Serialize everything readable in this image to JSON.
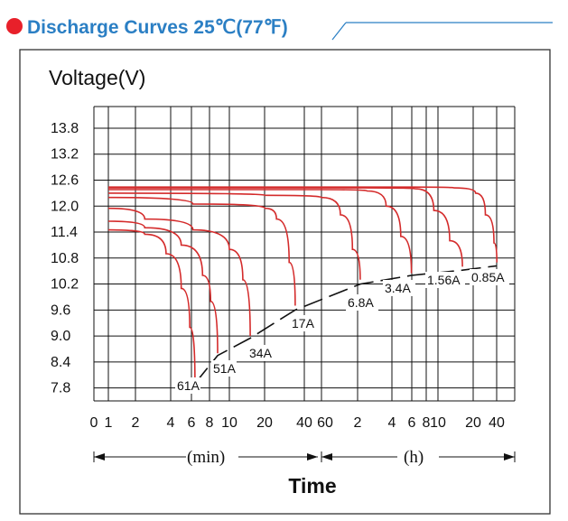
{
  "header": {
    "title": "Discharge Curves 25℃(77℉)",
    "accent_color": "#2b7fc4",
    "dot_color": "#e8202a"
  },
  "chart_data": {
    "type": "line",
    "ylabel": "Voltage(V)",
    "xlabel": "Time",
    "x_scale": "log",
    "ylim": [
      7.5,
      14.3
    ],
    "y_ticks": [
      13.8,
      13.2,
      12.6,
      12.0,
      11.4,
      10.8,
      10.2,
      9.6,
      9.0,
      8.4,
      7.8
    ],
    "x_ticks_min": [
      "0",
      "1",
      "2",
      "4",
      "6",
      "8",
      "10",
      "20",
      "40"
    ],
    "x_ticks_h": [
      "60",
      "2",
      "4",
      "6",
      "8",
      "10",
      "20",
      "40"
    ],
    "x_unit_min": "(min)",
    "x_unit_h": "(h)",
    "grid": true,
    "curve_color": "#d42b2b",
    "series": [
      {
        "name": "61A",
        "points": [
          [
            1,
            11.45
          ],
          [
            2,
            11.35
          ],
          [
            3,
            10.9
          ],
          [
            4,
            10.1
          ],
          [
            4.7,
            9.2
          ],
          [
            5.2,
            7.9
          ]
        ]
      },
      {
        "name": "51A",
        "points": [
          [
            1,
            11.65
          ],
          [
            2,
            11.5
          ],
          [
            4,
            11.1
          ],
          [
            6,
            10.4
          ],
          [
            7,
            9.8
          ],
          [
            8,
            8.6
          ]
        ]
      },
      {
        "name": "34A",
        "points": [
          [
            1,
            11.95
          ],
          [
            2,
            11.7
          ],
          [
            5,
            11.45
          ],
          [
            10,
            11.0
          ],
          [
            13,
            10.3
          ],
          [
            15,
            9.0
          ]
        ]
      },
      {
        "name": "17A",
        "points": [
          [
            1,
            12.2
          ],
          [
            5,
            12.05
          ],
          [
            20,
            11.95
          ],
          [
            25,
            11.7
          ],
          [
            32,
            10.7
          ],
          [
            36,
            9.7
          ]
        ]
      },
      {
        "name": "6.8A",
        "points": [
          [
            1,
            12.3
          ],
          [
            20,
            12.25
          ],
          [
            60,
            12.2
          ],
          [
            80,
            11.8
          ],
          [
            96,
            11.0
          ],
          [
            108,
            10.3
          ]
        ]
      },
      {
        "name": "3.4A",
        "points": [
          [
            1,
            12.38
          ],
          [
            60,
            12.38
          ],
          [
            120,
            12.35
          ],
          [
            160,
            12.0
          ],
          [
            200,
            11.3
          ],
          [
            235,
            10.45
          ]
        ]
      },
      {
        "name": "1.56A",
        "points": [
          [
            1,
            12.42
          ],
          [
            120,
            12.42
          ],
          [
            250,
            12.4
          ],
          [
            330,
            11.9
          ],
          [
            420,
            11.2
          ],
          [
            510,
            10.6
          ]
        ]
      },
      {
        "name": "0.85A",
        "points": [
          [
            1,
            12.44
          ],
          [
            240,
            12.44
          ],
          [
            450,
            12.42
          ],
          [
            650,
            12.3
          ],
          [
            900,
            11.8
          ],
          [
            1200,
            11.15
          ],
          [
            1320,
            10.7
          ]
        ]
      }
    ],
    "end_voltage_line": [
      [
        5.2,
        7.9
      ],
      [
        8,
        8.55
      ],
      [
        15,
        8.95
      ],
      [
        36,
        9.6
      ],
      [
        108,
        10.2
      ],
      [
        235,
        10.4
      ],
      [
        510,
        10.52
      ],
      [
        1320,
        10.62
      ]
    ]
  }
}
